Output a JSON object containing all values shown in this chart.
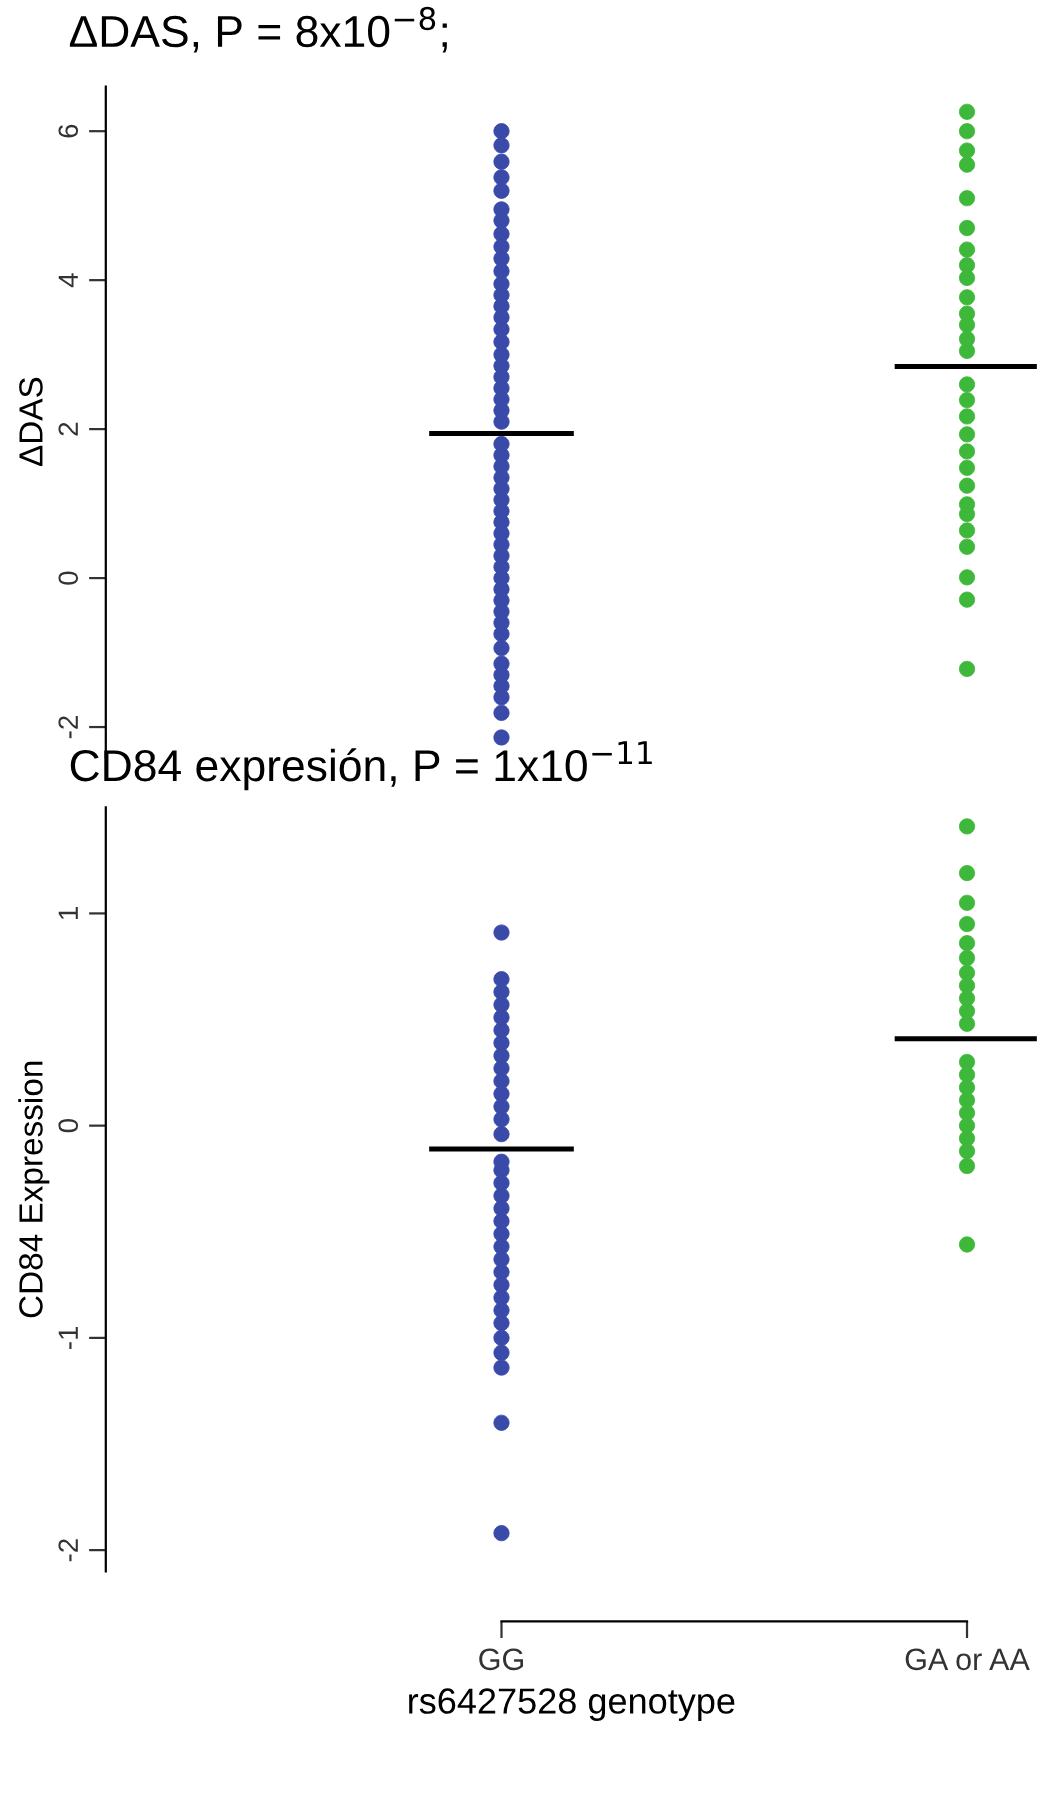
{
  "chart_data": [
    {
      "type": "scatter",
      "title": "ΔDAS, P = 8x10$^{−8}$;",
      "ylabel": "ΔDAS",
      "categories": [
        "GG",
        "GA or AA"
      ],
      "ylim": [
        -2.4,
        6.6
      ],
      "yticks": [
        -2,
        0,
        2,
        4,
        6
      ],
      "tick_labels": "y",
      "grid": false,
      "marker": "circle",
      "series": [
        {
          "color": "#3a4aa8",
          "x": [
            "GG",
            "GG",
            "GG",
            "GG",
            "GG",
            "GG",
            "GG",
            "GG",
            "GG",
            "GG",
            "GG",
            "GG",
            "GG",
            "GG",
            "GG",
            "GG",
            "GG",
            "GG",
            "GG",
            "GG",
            "GG",
            "GG",
            "GG",
            "GG",
            "GG",
            "GG",
            "GG",
            "GG",
            "GG",
            "GG",
            "GG",
            "GG",
            "GG",
            "GG",
            "GG",
            "GG",
            "GG",
            "GG",
            "GG",
            "GG",
            "GG",
            "GG",
            "GG",
            "GG",
            "GG",
            "GG",
            "GG",
            "GG",
            "GG"
          ],
          "values": [
            -2.14,
            -1.81,
            -1.6,
            -1.45,
            -1.3,
            -1.15,
            -0.94,
            -0.75,
            -0.6,
            -0.45,
            -0.3,
            -0.15,
            0.0,
            0.15,
            0.3,
            0.45,
            0.6,
            0.75,
            0.9,
            1.05,
            1.2,
            1.35,
            1.5,
            1.65,
            1.8,
            2.1,
            2.25,
            2.4,
            2.55,
            2.7,
            2.85,
            3.0,
            3.17,
            3.34,
            3.5,
            3.65,
            3.8,
            3.95,
            4.12,
            4.29,
            4.45,
            4.62,
            4.8,
            4.95,
            5.2,
            5.38,
            5.59,
            5.81,
            6.0
          ]
        },
        {
          "color": "#3db83a",
          "x": [
            "GA or AA",
            "GA or AA",
            "GA or AA",
            "GA or AA",
            "GA or AA",
            "GA or AA",
            "GA or AA",
            "GA or AA",
            "GA or AA",
            "GA or AA",
            "GA or AA",
            "GA or AA",
            "GA or AA",
            "GA or AA",
            "GA or AA",
            "GA or AA",
            "GA or AA",
            "GA or AA",
            "GA or AA",
            "GA or AA",
            "GA or AA",
            "GA or AA",
            "GA or AA",
            "GA or AA",
            "GA or AA",
            "GA or AA",
            "GA or AA",
            "GA or AA",
            "GA or AA"
          ],
          "values": [
            -1.22,
            -0.29,
            0.01,
            0.42,
            0.64,
            0.86,
            0.99,
            1.24,
            1.48,
            1.7,
            1.93,
            2.17,
            2.39,
            2.6,
            3.05,
            3.21,
            3.4,
            3.55,
            3.77,
            4.03,
            4.2,
            4.41,
            4.7,
            5.1,
            5.55,
            5.74,
            6.0,
            6.26,
            null
          ]
        }
      ],
      "ref_lines": [
        {
          "axis": "y",
          "value": 1.94,
          "color": "#000000"
        },
        {
          "axis": "y",
          "value": 2.84,
          "color": "#000000"
        }
      ]
    },
    {
      "type": "scatter",
      "title": "CD84 expresión, P = 1x10$^{−11}$",
      "ylabel": "CD84 Expression",
      "xlabel": "rs6427528 genotype",
      "categories": [
        "GG",
        "GA or AA"
      ],
      "ylim": [
        -2.1,
        1.5
      ],
      "yticks": [
        -2,
        -1,
        0,
        1
      ],
      "grid": false,
      "marker": "circle",
      "series": [
        {
          "color": "#3a4aa8",
          "x": [
            "GG",
            "GG",
            "GG",
            "GG",
            "GG",
            "GG",
            "GG",
            "GG",
            "GG",
            "GG",
            "GG",
            "GG",
            "GG",
            "GG",
            "GG",
            "GG",
            "GG",
            "GG",
            "GG",
            "GG",
            "GG",
            "GG",
            "GG",
            "GG",
            "GG",
            "GG",
            "GG",
            "GG",
            "GG",
            "GG",
            "GG",
            "GG",
            "GG"
          ],
          "values": [
            -1.92,
            -1.4,
            -1.14,
            -1.07,
            -1.0,
            -0.93,
            -0.87,
            -0.81,
            -0.75,
            -0.69,
            -0.63,
            -0.57,
            -0.51,
            -0.45,
            -0.39,
            -0.33,
            -0.27,
            -0.21,
            -0.17,
            -0.04,
            0.03,
            0.09,
            0.15,
            0.21,
            0.27,
            0.33,
            0.39,
            0.45,
            0.51,
            0.57,
            0.63,
            0.69,
            0.91
          ]
        },
        {
          "color": "#3db83a",
          "x": [
            "GA or AA",
            "GA or AA",
            "GA or AA",
            "GA or AA",
            "GA or AA",
            "GA or AA",
            "GA or AA",
            "GA or AA",
            "GA or AA",
            "GA or AA",
            "GA or AA",
            "GA or AA",
            "GA or AA",
            "GA or AA",
            "GA or AA",
            "GA or AA",
            "GA or AA",
            "GA or AA",
            "GA or AA",
            "GA or AA",
            "GA or AA"
          ],
          "values": [
            -0.56,
            -0.19,
            -0.12,
            -0.06,
            0.0,
            0.06,
            0.12,
            0.18,
            0.24,
            0.3,
            0.48,
            0.54,
            0.6,
            0.66,
            0.72,
            0.79,
            0.86,
            0.95,
            1.05,
            1.19,
            1.41
          ]
        }
      ],
      "ref_lines": [
        {
          "axis": "y",
          "value": -0.11,
          "color": "#000000"
        },
        {
          "axis": "y",
          "value": 0.41,
          "color": "#000000"
        }
      ]
    }
  ]
}
